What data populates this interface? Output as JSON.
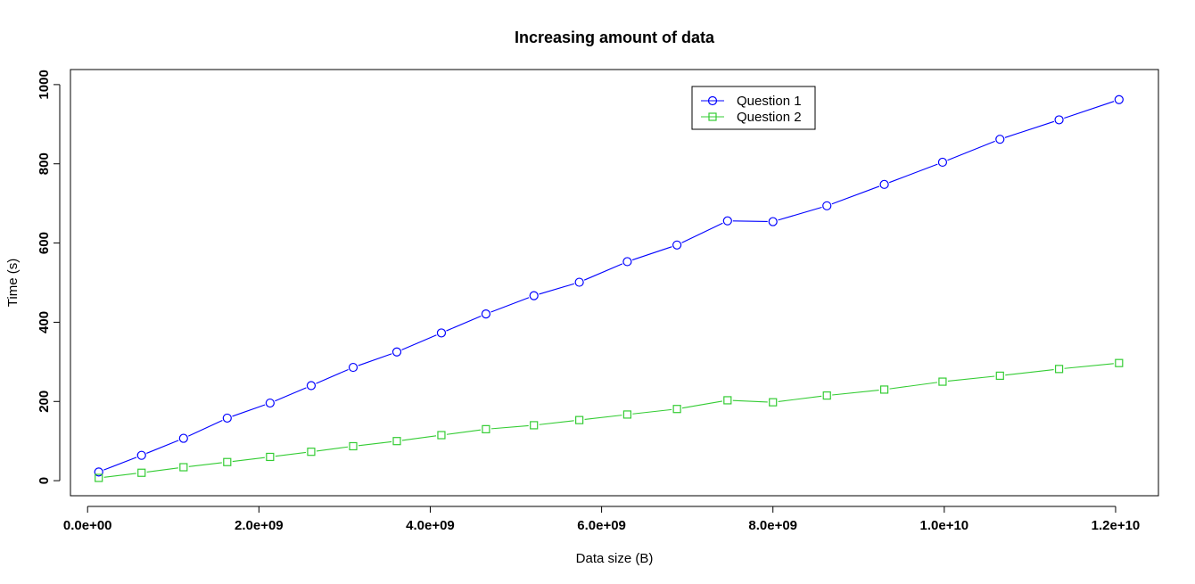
{
  "chart_data": {
    "type": "line",
    "title": "Increasing amount of data",
    "xlabel": "Data size (B)",
    "ylabel": "Time (s)",
    "xlim": [
      -200000000,
      12500000000
    ],
    "ylim": [
      -38,
      1038
    ],
    "x_ticks": [
      {
        "value": 0,
        "label": "0.0e+00"
      },
      {
        "value": 2000000000,
        "label": "2.0e+09"
      },
      {
        "value": 4000000000,
        "label": "4.0e+09"
      },
      {
        "value": 6000000000,
        "label": "6.0e+09"
      },
      {
        "value": 8000000000,
        "label": "8.0e+09"
      },
      {
        "value": 10000000000,
        "label": "1.0e+10"
      },
      {
        "value": 12000000000,
        "label": "1.2e+10"
      }
    ],
    "y_ticks": [
      {
        "value": 0,
        "label": "0"
      },
      {
        "value": 200,
        "label": "200"
      },
      {
        "value": 400,
        "label": "400"
      },
      {
        "value": 600,
        "label": "600"
      },
      {
        "value": 800,
        "label": "800"
      },
      {
        "value": 1000,
        "label": "1000"
      }
    ],
    "x": [
      130000000,
      630000000,
      1120000000,
      1630000000,
      2130000000,
      2610000000,
      3100000000,
      3610000000,
      4130000000,
      4650000000,
      5210000000,
      5740000000,
      6300000000,
      6880000000,
      7470000000,
      8000000000,
      8630000000,
      9300000000,
      9980000000,
      10650000000,
      11340000000,
      12040000000
    ],
    "series": [
      {
        "name": "Question 1",
        "color": "#0000ff",
        "marker": "circle",
        "values": [
          22,
          64,
          107,
          158,
          196,
          240,
          286,
          325,
          373,
          421,
          467,
          501,
          553,
          595,
          656,
          654,
          694,
          748,
          804,
          862,
          911,
          962
        ]
      },
      {
        "name": "Question 2",
        "color": "#33cc33",
        "marker": "square",
        "values": [
          7,
          20,
          34,
          47,
          60,
          73,
          87,
          100,
          115,
          130,
          140,
          153,
          167,
          181,
          203,
          198,
          215,
          230,
          250,
          265,
          282,
          297
        ]
      }
    ],
    "grid": false,
    "legend_position": "top-right"
  }
}
